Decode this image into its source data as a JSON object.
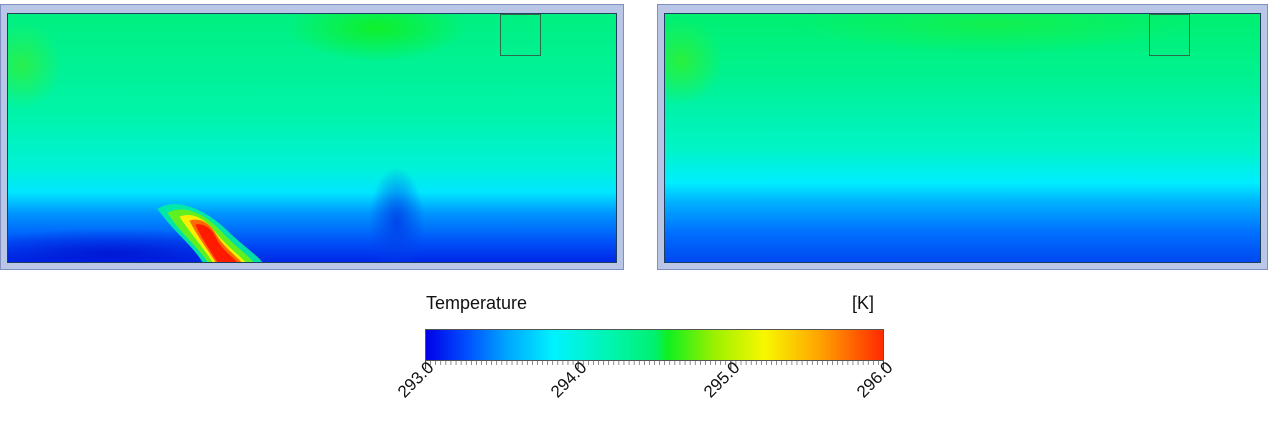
{
  "legend": {
    "title": "Temperature",
    "unit": "[K]",
    "min": 293.0,
    "max": 296.0,
    "tick_labels": [
      "293.0",
      "294.0",
      "295.0",
      "296.0"
    ],
    "tick_values": [
      293.0,
      294.0,
      295.0,
      296.0
    ],
    "colors": [
      "#0000e8",
      "#00a8ff",
      "#00f2ff",
      "#00f070",
      "#9af000",
      "#f8f800",
      "#ff2a00"
    ]
  },
  "panels": [
    {
      "name": "left-contour",
      "hot_plume": true
    },
    {
      "name": "right-contour",
      "hot_plume": false
    }
  ]
}
